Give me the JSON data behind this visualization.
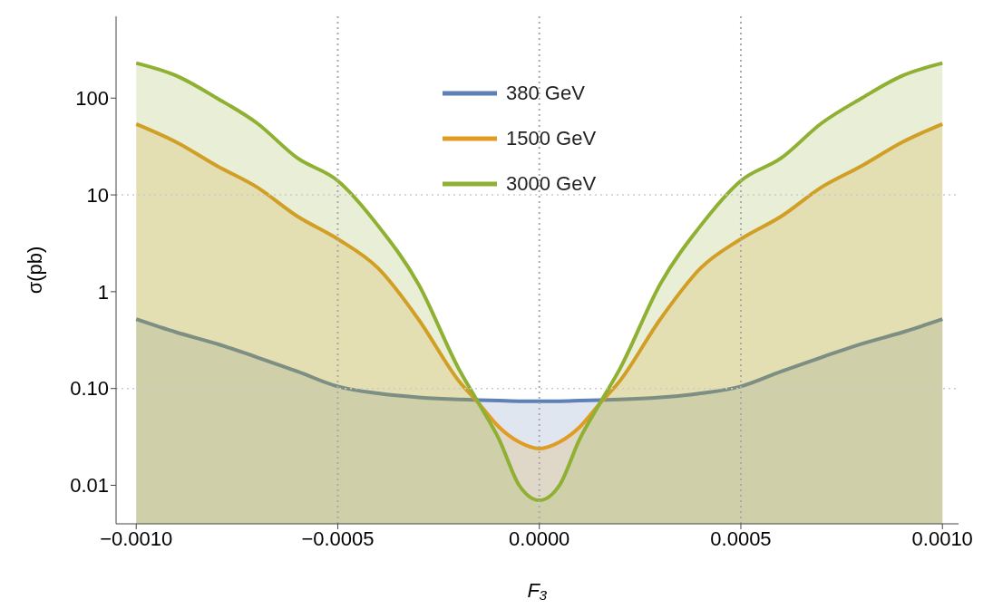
{
  "chart_data": {
    "type": "area",
    "xlabel": "F₃",
    "ylabel": "σ(pb)",
    "x": [
      -0.001,
      -0.0009,
      -0.0008,
      -0.0007,
      -0.0006,
      -0.0005,
      -0.0004,
      -0.0003,
      -0.0002,
      -0.00015,
      -0.0001,
      -5e-05,
      0,
      5e-05,
      0.0001,
      0.00015,
      0.0002,
      0.0003,
      0.0004,
      0.0005,
      0.0006,
      0.0007,
      0.0008,
      0.0009,
      0.001
    ],
    "series": [
      {
        "name": "380 GeV",
        "color": "#5e81b5",
        "values": [
          0.52,
          0.38,
          0.29,
          0.21,
          0.15,
          0.105,
          0.089,
          0.081,
          0.077,
          0.076,
          0.075,
          0.074,
          0.074,
          0.074,
          0.075,
          0.076,
          0.077,
          0.081,
          0.089,
          0.105,
          0.15,
          0.21,
          0.29,
          0.38,
          0.52
        ]
      },
      {
        "name": "1500 GeV",
        "color": "#e19c24",
        "values": [
          54,
          35,
          20,
          12,
          6,
          3.5,
          1.75,
          0.52,
          0.12,
          0.07,
          0.04,
          0.028,
          0.024,
          0.028,
          0.04,
          0.07,
          0.12,
          0.52,
          1.75,
          3.5,
          6,
          12,
          20,
          35,
          54
        ]
      },
      {
        "name": "3000 GeV",
        "color": "#8fb032",
        "values": [
          230,
          170,
          100,
          55,
          24,
          14,
          4.8,
          1.2,
          0.16,
          0.07,
          0.03,
          0.01,
          0.007,
          0.01,
          0.03,
          0.07,
          0.16,
          1.2,
          4.8,
          14,
          24,
          55,
          100,
          170,
          230
        ]
      }
    ],
    "xlim": [
      -0.00105,
      0.00104
    ],
    "xticks": [
      {
        "value": -0.001,
        "label": "−0.0010"
      },
      {
        "value": -0.0005,
        "label": "−0.0005"
      },
      {
        "value": 0,
        "label": "0.0000"
      },
      {
        "value": 0.0005,
        "label": "0.0005"
      },
      {
        "value": 0.001,
        "label": "0.0010"
      }
    ],
    "ylim": [
      0.004,
      700
    ],
    "yticks": [
      0.01,
      {
        "value": 0.1,
        "label": "0.10"
      },
      1,
      10,
      100
    ],
    "log": "y",
    "legend": "top",
    "ref_lines": [
      {
        "axis": "x",
        "value": -0.0005,
        "color": "#aaaaaa",
        "line_style": "dotted"
      },
      {
        "axis": "x",
        "value": 0,
        "color": "#aaaaaa",
        "line_style": "dotted"
      },
      {
        "axis": "x",
        "value": 0.0005,
        "color": "#aaaaaa",
        "line_style": "dotted"
      },
      {
        "axis": "y",
        "value": 10,
        "color": "#cccccc",
        "line_style": "dotted"
      },
      {
        "axis": "y",
        "value": 0.1,
        "color": "#cccccc",
        "line_style": "dotted"
      }
    ]
  }
}
